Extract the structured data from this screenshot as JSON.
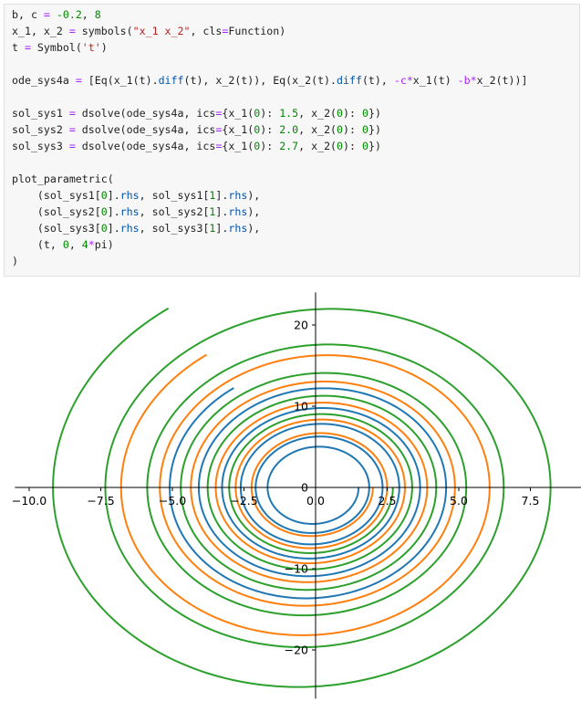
{
  "code_cell": {
    "lines": [
      [
        [
          "b, c ",
          ""
        ],
        [
          "=",
          "op"
        ],
        [
          " ",
          ""
        ],
        [
          "-0.2",
          "num"
        ],
        [
          ", ",
          ""
        ],
        [
          "8",
          "num"
        ]
      ],
      [
        [
          "x_1, x_2 ",
          ""
        ],
        [
          "=",
          "op"
        ],
        [
          " symbols(",
          ""
        ],
        [
          "\"x_1 x_2\"",
          "str"
        ],
        [
          ", cls",
          ""
        ],
        [
          "=",
          "op"
        ],
        [
          "Function)",
          ""
        ]
      ],
      [
        [
          "t ",
          ""
        ],
        [
          "=",
          "op"
        ],
        [
          " Symbol(",
          ""
        ],
        [
          "'t'",
          "str"
        ],
        [
          ")",
          ""
        ]
      ],
      [],
      [
        [
          "ode_sys4a ",
          ""
        ],
        [
          "=",
          "op"
        ],
        [
          " [Eq(x_1(t).",
          ""
        ],
        [
          "diff",
          "attr"
        ],
        [
          "(t), x_2(t)), Eq(x_2(t).",
          ""
        ],
        [
          "diff",
          "attr"
        ],
        [
          "(t), ",
          ""
        ],
        [
          "-c",
          "op"
        ],
        [
          "*",
          "op"
        ],
        [
          "x_1(t) ",
          ""
        ],
        [
          "-b",
          "op"
        ],
        [
          "*",
          "op"
        ],
        [
          "x_2(t))]",
          ""
        ]
      ],
      [],
      [
        [
          "sol_sys1 ",
          ""
        ],
        [
          "=",
          "op"
        ],
        [
          " dsolve(ode_sys4a, ics",
          ""
        ],
        [
          "=",
          "op"
        ],
        [
          "{x_1(",
          ""
        ],
        [
          "0",
          "num"
        ],
        [
          "): ",
          ""
        ],
        [
          "1.5",
          "num"
        ],
        [
          ", x_2(",
          ""
        ],
        [
          "0",
          "num"
        ],
        [
          "): ",
          ""
        ],
        [
          "0",
          "num"
        ],
        [
          "})",
          ""
        ]
      ],
      [
        [
          "sol_sys2 ",
          ""
        ],
        [
          "=",
          "op"
        ],
        [
          " dsolve(ode_sys4a, ics",
          ""
        ],
        [
          "=",
          "op"
        ],
        [
          "{x_1(",
          ""
        ],
        [
          "0",
          "num"
        ],
        [
          "): ",
          ""
        ],
        [
          "2.0",
          "num"
        ],
        [
          ", x_2(",
          ""
        ],
        [
          "0",
          "num"
        ],
        [
          "): ",
          ""
        ],
        [
          "0",
          "num"
        ],
        [
          "})",
          ""
        ]
      ],
      [
        [
          "sol_sys3 ",
          ""
        ],
        [
          "=",
          "op"
        ],
        [
          " dsolve(ode_sys4a, ics",
          ""
        ],
        [
          "=",
          "op"
        ],
        [
          "{x_1(",
          ""
        ],
        [
          "0",
          "num"
        ],
        [
          "): ",
          ""
        ],
        [
          "2.7",
          "num"
        ],
        [
          ", x_2(",
          ""
        ],
        [
          "0",
          "num"
        ],
        [
          "): ",
          ""
        ],
        [
          "0",
          "num"
        ],
        [
          "})",
          ""
        ]
      ],
      [],
      [
        [
          "plot_parametric(",
          ""
        ]
      ],
      [
        [
          "    (sol_sys1[",
          ""
        ],
        [
          "0",
          "num"
        ],
        [
          "].",
          ""
        ],
        [
          "rhs",
          "attr"
        ],
        [
          ", sol_sys1[",
          ""
        ],
        [
          "1",
          "num"
        ],
        [
          "].",
          ""
        ],
        [
          "rhs",
          "attr"
        ],
        [
          "),",
          ""
        ]
      ],
      [
        [
          "    (sol_sys2[",
          ""
        ],
        [
          "0",
          "num"
        ],
        [
          "].",
          ""
        ],
        [
          "rhs",
          "attr"
        ],
        [
          ", sol_sys2[",
          ""
        ],
        [
          "1",
          "num"
        ],
        [
          "].",
          ""
        ],
        [
          "rhs",
          "attr"
        ],
        [
          "),",
          ""
        ]
      ],
      [
        [
          "    (sol_sys3[",
          ""
        ],
        [
          "0",
          "num"
        ],
        [
          "].",
          ""
        ],
        [
          "rhs",
          "attr"
        ],
        [
          ", sol_sys3[",
          ""
        ],
        [
          "1",
          "num"
        ],
        [
          "].",
          ""
        ],
        [
          "rhs",
          "attr"
        ],
        [
          "),",
          ""
        ]
      ],
      [
        [
          "    (t, ",
          ""
        ],
        [
          "0",
          "num"
        ],
        [
          ", ",
          ""
        ],
        [
          "4",
          "num"
        ],
        [
          "*",
          "op"
        ],
        [
          "pi)",
          ""
        ]
      ],
      [
        [
          ")",
          ""
        ]
      ]
    ]
  },
  "chart_data": {
    "type": "line",
    "params": {
      "b": -0.2,
      "c": 8
    },
    "t_range": [
      0,
      12.566370614359172
    ],
    "x_ticks": [
      "−10.0",
      "−7.5",
      "−5.0",
      "−2.5",
      "0.0",
      "2.5",
      "5.0",
      "7.5"
    ],
    "x_tick_values": [
      -10,
      -7.5,
      -5,
      -2.5,
      0,
      2.5,
      5,
      7.5
    ],
    "y_ticks": [
      "20",
      "10",
      "0",
      "−10",
      "−20"
    ],
    "y_tick_values": [
      20,
      10,
      0,
      -10,
      -20
    ],
    "xlim": [
      -10.5,
      9.8
    ],
    "ylim": [
      -26,
      24
    ],
    "series": [
      {
        "x1_0": 1.5,
        "x2_0": 0,
        "color": "#1f77b4"
      },
      {
        "x1_0": 2.0,
        "x2_0": 0,
        "color": "#ff7f0e"
      },
      {
        "x1_0": 2.7,
        "x2_0": 0,
        "color": "#2ca02c"
      }
    ]
  }
}
